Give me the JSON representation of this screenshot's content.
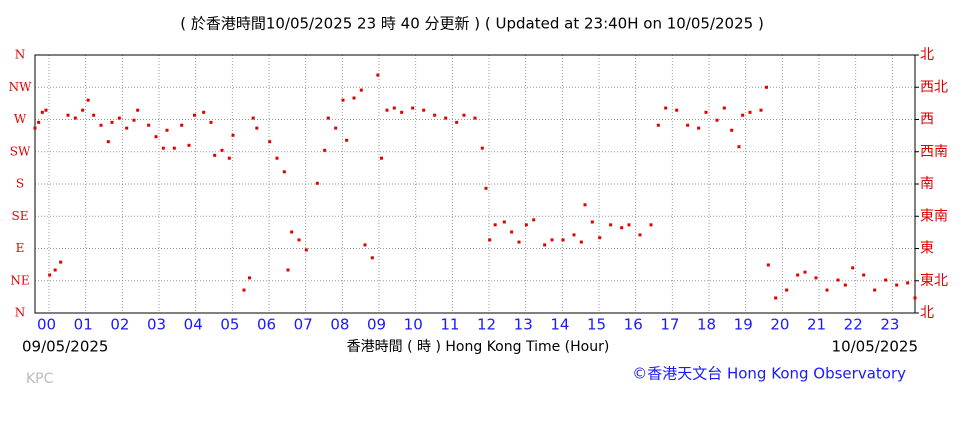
{
  "chart_data": {
    "type": "scatter",
    "title": "( 於香港時間10/05/2025 23 時 40 分更新 ) ( Updated at 23:40H on 10/05/2025 )",
    "x_label": "香港時間 ( 時 )  Hong Kong Time (Hour)",
    "start_date": "09/05/2025",
    "end_date": "10/05/2025",
    "station": "KPC",
    "credit": "©香港天文台 Hong Kong Observatory",
    "color": "#e00000",
    "grid": true,
    "xlim": [
      0,
      24
    ],
    "xticks": [
      {
        "value": 0,
        "label": "00"
      },
      {
        "value": 1,
        "label": "01"
      },
      {
        "value": 2,
        "label": "02"
      },
      {
        "value": 3,
        "label": "03"
      },
      {
        "value": 4,
        "label": "04"
      },
      {
        "value": 5,
        "label": "05"
      },
      {
        "value": 6,
        "label": "06"
      },
      {
        "value": 7,
        "label": "07"
      },
      {
        "value": 8,
        "label": "08"
      },
      {
        "value": 9,
        "label": "09"
      },
      10,
      11,
      12,
      13,
      14,
      15,
      16,
      17,
      18,
      19,
      20,
      21,
      22,
      23
    ],
    "ylim": [
      0,
      360
    ],
    "yticks": [
      {
        "value": 0,
        "label": "N"
      },
      {
        "value": 45,
        "label": "NE"
      },
      {
        "value": 90,
        "label": "E"
      },
      {
        "value": 135,
        "label": "SE"
      },
      {
        "value": 180,
        "label": "S"
      },
      {
        "value": 225,
        "label": "SW"
      },
      {
        "value": 270,
        "label": "W"
      },
      {
        "value": 315,
        "label": "NW"
      },
      {
        "value": 360,
        "label": "N"
      }
    ],
    "y2lim": [
      0,
      360
    ],
    "y2ticks": [
      {
        "value": 0,
        "label": "北"
      },
      {
        "value": 45,
        "label": "東北"
      },
      {
        "value": 90,
        "label": "東"
      },
      {
        "value": 135,
        "label": "東南"
      },
      {
        "value": 180,
        "label": "南"
      },
      {
        "value": 225,
        "label": "西南"
      },
      {
        "value": 270,
        "label": "西"
      },
      {
        "value": 315,
        "label": "西北"
      },
      {
        "value": 360,
        "label": "北"
      }
    ],
    "x": [
      0.0,
      0.1,
      0.2,
      0.3,
      0.4,
      0.55,
      0.7,
      0.9,
      1.1,
      1.3,
      1.45,
      1.6,
      1.8,
      2.0,
      2.1,
      2.3,
      2.5,
      2.7,
      2.8,
      3.1,
      3.3,
      3.5,
      3.6,
      3.8,
      4.0,
      4.2,
      4.35,
      4.6,
      4.8,
      4.9,
      5.1,
      5.3,
      5.4,
      5.7,
      5.85,
      5.95,
      6.05,
      6.4,
      6.6,
      6.8,
      6.9,
      7.0,
      7.2,
      7.4,
      7.7,
      7.9,
      8.0,
      8.2,
      8.4,
      8.5,
      8.7,
      8.9,
      9.0,
      9.2,
      9.35,
      9.45,
      9.6,
      9.8,
      10.0,
      10.3,
      10.6,
      10.9,
      11.2,
      11.5,
      11.7,
      12.0,
      12.2,
      12.3,
      12.4,
      12.55,
      12.8,
      13.0,
      13.2,
      13.4,
      13.6,
      13.9,
      14.1,
      14.4,
      14.7,
      14.9,
      15.0,
      15.2,
      15.4,
      15.7,
      16.0,
      16.2,
      16.5,
      16.8,
      17.0,
      17.2,
      17.5,
      17.8,
      18.1,
      18.3,
      18.6,
      18.8,
      19.0,
      19.2,
      19.3,
      19.5,
      19.8,
      19.95,
      20.0,
      20.2,
      20.5,
      20.8,
      21.0,
      21.3,
      21.6,
      21.9,
      22.1,
      22.3,
      22.6,
      22.9,
      23.2,
      23.5,
      23.8,
      24.0
    ],
    "values": [
      258,
      266,
      280,
      283,
      53,
      60,
      71,
      276,
      272,
      283,
      297,
      276,
      262,
      239,
      266,
      272,
      258,
      269,
      283,
      262,
      246,
      230,
      255,
      230,
      262,
      234,
      276,
      280,
      266,
      220,
      227,
      216,
      248,
      32,
      49,
      272,
      258,
      239,
      216,
      197,
      60,
      113,
      102,
      88,
      181,
      227,
      272,
      258,
      297,
      241,
      300,
      311,
      95,
      77,
      332,
      216,
      283,
      286,
      280,
      286,
      283,
      276,
      272,
      266,
      276,
      272,
      230,
      174,
      102,
      123,
      127,
      113,
      99,
      123,
      130,
      95,
      102,
      102,
      109,
      99,
      151,
      127,
      105,
      123,
      119,
      123,
      109,
      123,
      262,
      286,
      283,
      262,
      258,
      280,
      269,
      286,
      255,
      232,
      276,
      280,
      283,
      315,
      67,
      21,
      32,
      53,
      57,
      49,
      32,
      46,
      39,
      63,
      53,
      32,
      46,
      39,
      42,
      21
    ]
  }
}
